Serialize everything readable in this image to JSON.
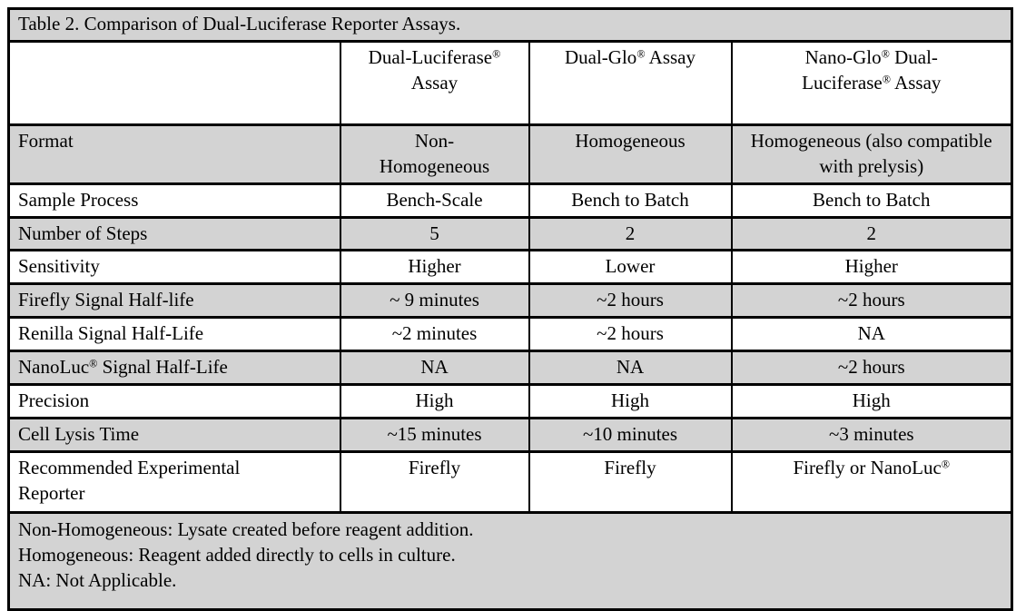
{
  "table": {
    "title": "Table 2. Comparison of Dual-Luciferase Reporter Assays.",
    "columns": [
      "",
      "Dual-Luciferase® Assay",
      "Dual-Glo® Assay",
      "Nano-Glo® Dual-Luciferase® Assay"
    ],
    "rows": [
      {
        "label": "Format",
        "values": [
          "Non-Homogeneous",
          "Homogeneous",
          "Homogeneous (also compatible with prelysis)"
        ]
      },
      {
        "label": "Sample Process",
        "values": [
          "Bench-Scale",
          "Bench to Batch",
          "Bench to Batch"
        ]
      },
      {
        "label": "Number of Steps",
        "values": [
          "5",
          "2",
          "2"
        ]
      },
      {
        "label": "Sensitivity",
        "values": [
          "Higher",
          "Lower",
          "Higher"
        ]
      },
      {
        "label": "Firefly Signal Half-life",
        "values": [
          "~ 9 minutes",
          "~2 hours",
          "~2 hours"
        ]
      },
      {
        "label": "Renilla Signal Half-Life",
        "values": [
          "~2 minutes",
          "~2 hours",
          "NA"
        ]
      },
      {
        "label": "NanoLuc® Signal Half-Life",
        "values": [
          "NA",
          "NA",
          "~2 hours"
        ]
      },
      {
        "label": "Precision",
        "values": [
          "High",
          "High",
          "High"
        ]
      },
      {
        "label": "Cell Lysis Time",
        "values": [
          "~15 minutes",
          "~10 minutes",
          "~3 minutes"
        ]
      },
      {
        "label": "Recommended Experimental Reporter",
        "values": [
          "Firefly",
          "Firefly",
          "Firefly or NanoLuc®"
        ]
      }
    ],
    "footnotes": [
      "Non-Homogeneous: Lysate created before reagent addition.",
      "Homogeneous: Reagent added directly to cells in culture.",
      "NA: Not Applicable."
    ],
    "colors": {
      "row_shade": "#d3d3d3",
      "border": "#000000",
      "background": "#ffffff",
      "text": "#000000"
    }
  }
}
